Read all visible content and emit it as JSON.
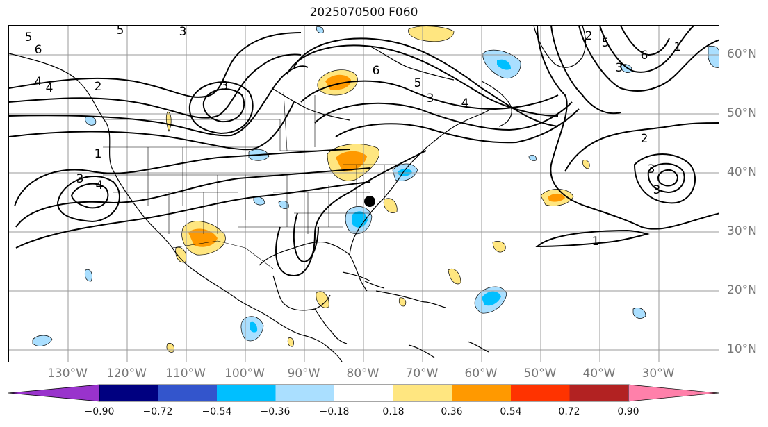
{
  "title": "2025070500 F060",
  "lon_labels": [
    "130°W",
    "120°W",
    "110°W",
    "100°W",
    "90°W",
    "80°W",
    "70°W",
    "60°W",
    "50°W",
    "40°W",
    "30°W"
  ],
  "lat_labels": [
    "60°N",
    "50°N",
    "40°N",
    "30°N",
    "20°N",
    "10°N"
  ],
  "colorbar": {
    "ticks": [
      "−0.90",
      "−0.72",
      "−0.54",
      "−0.36",
      "−0.18",
      "0.18",
      "0.36",
      "0.54",
      "0.72",
      "0.90"
    ],
    "colors": [
      "#9933cc",
      "#000080",
      "#3355cc",
      "#00bfff",
      "#aadfff",
      "#ffffff",
      "#ffe680",
      "#ff9900",
      "#ff3300",
      "#b22222",
      "#ff80aa"
    ]
  },
  "contour_labels": [
    "5",
    "6",
    "5",
    "4",
    "4",
    "3",
    "2",
    "3",
    "6",
    "5",
    "3",
    "4",
    "3",
    "5",
    "6",
    "2",
    "1",
    "3",
    "4",
    "3",
    "2",
    "3",
    "1",
    "1"
  ],
  "marker": {
    "name": "black-dot",
    "lon": -78.5,
    "lat": 35.3
  }
}
